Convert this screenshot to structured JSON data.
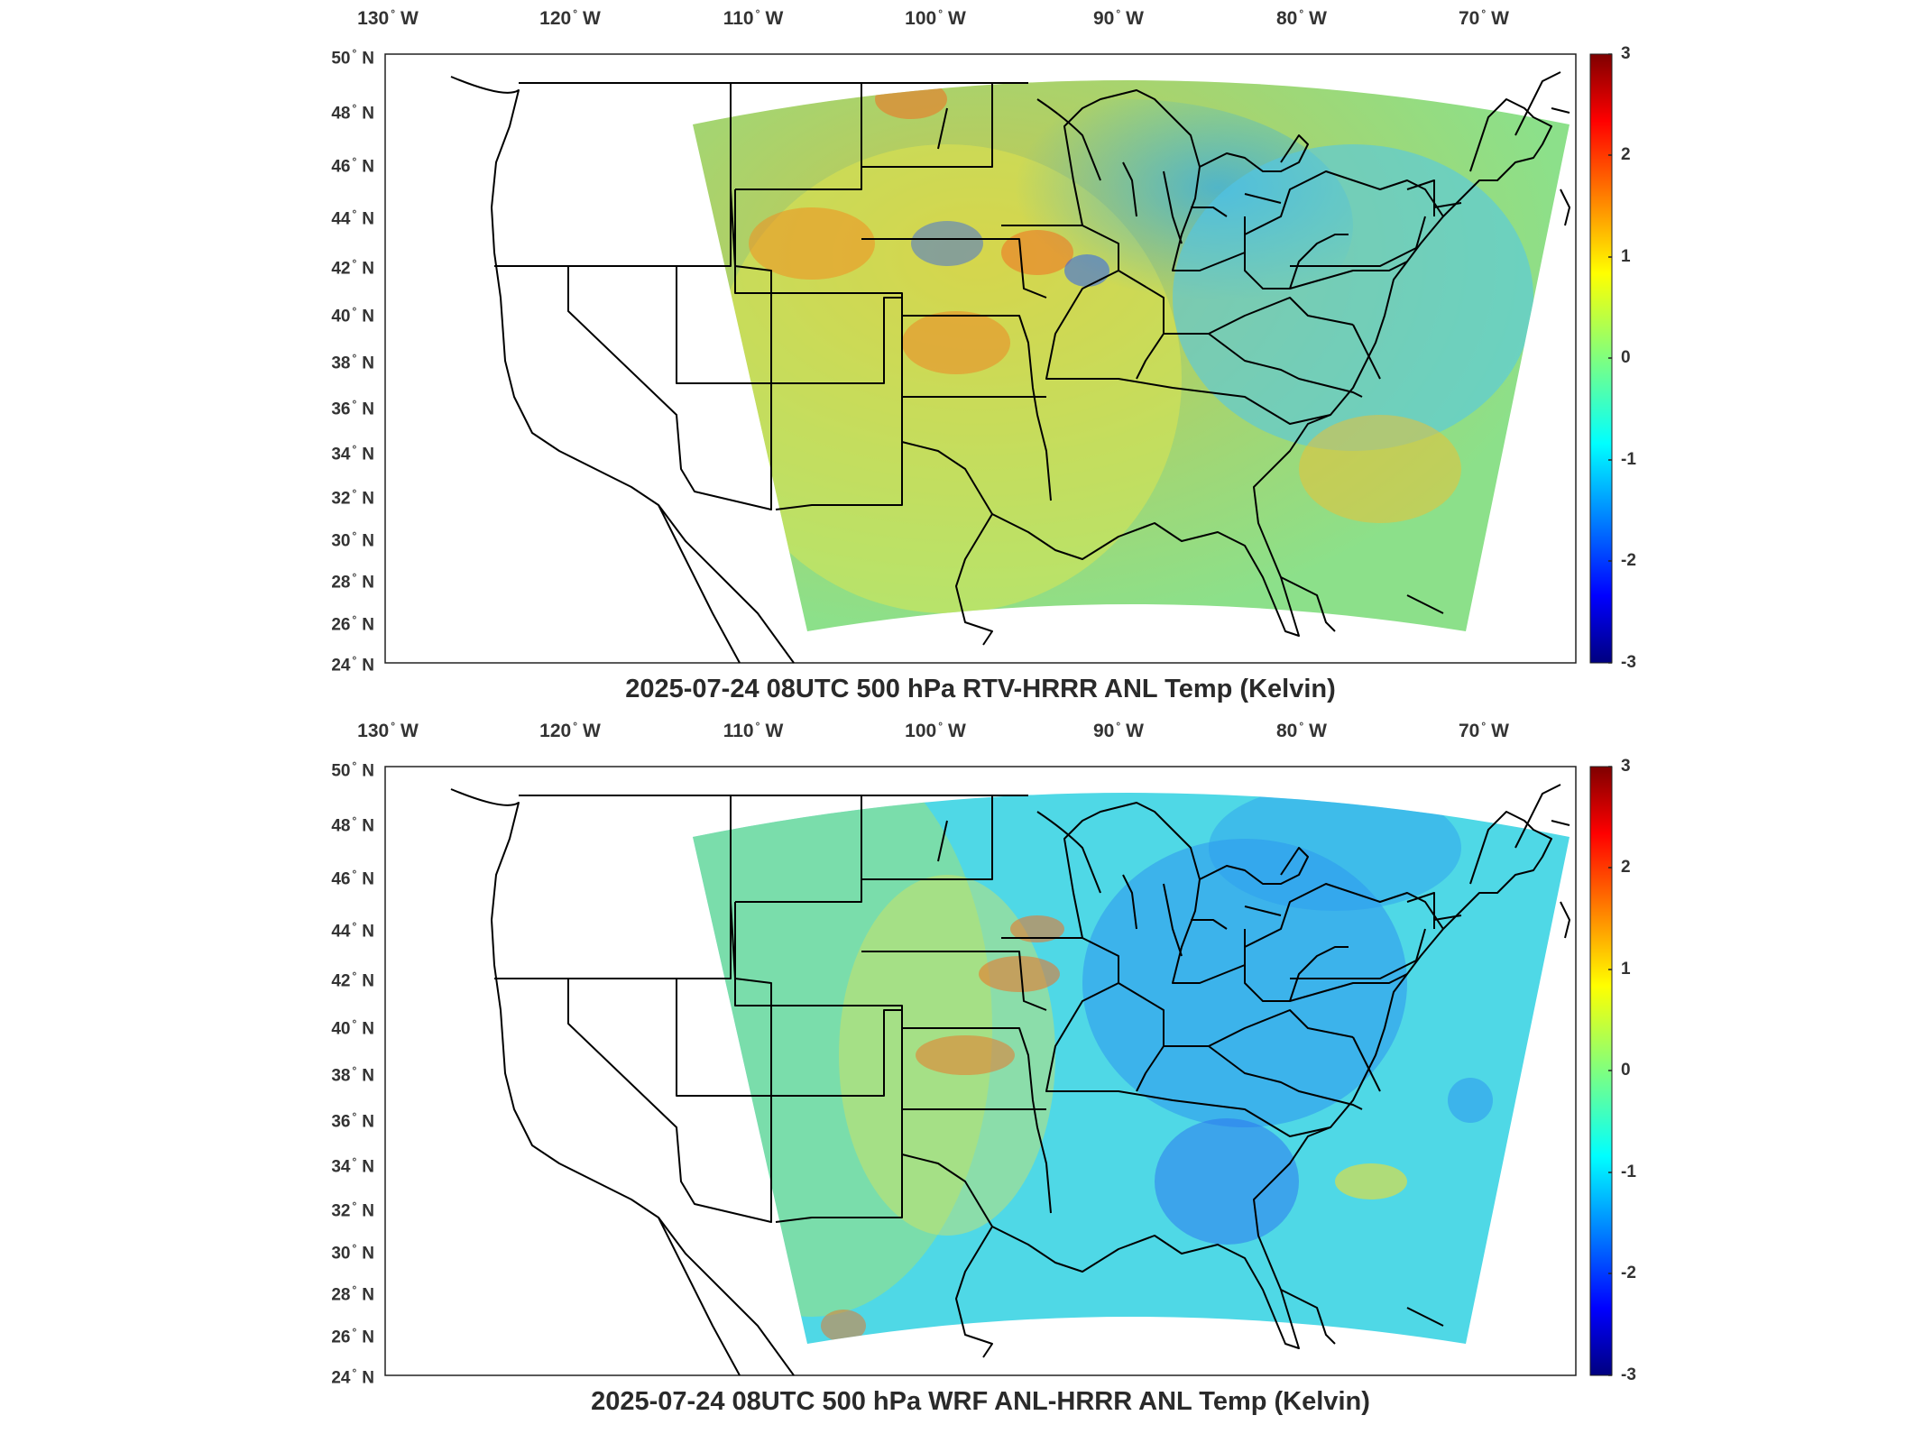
{
  "panels": [
    {
      "title": "2025-07-24 08UTC 500 hPa RTV-HRRR ANL Temp (Kelvin)",
      "colormap": "jet",
      "colorbar_range": [
        -3,
        3
      ],
      "colorbar_ticks": [
        "3",
        "2",
        "1",
        "0",
        "-1",
        "-2",
        "-3"
      ]
    },
    {
      "title": "2025-07-24 08UTC 500 hPa WRF ANL-HRRR ANL Temp (Kelvin)",
      "colormap": "jet",
      "colorbar_range": [
        -3,
        3
      ],
      "colorbar_ticks": [
        "3",
        "2",
        "1",
        "0",
        "-1",
        "-2",
        "-3"
      ]
    }
  ],
  "lon_ticks": [
    {
      "value": "130",
      "hem": "W"
    },
    {
      "value": "120",
      "hem": "W"
    },
    {
      "value": "110",
      "hem": "W"
    },
    {
      "value": "100",
      "hem": "W"
    },
    {
      "value": "90",
      "hem": "W"
    },
    {
      "value": "80",
      "hem": "W"
    },
    {
      "value": "70",
      "hem": "W"
    }
  ],
  "lat_ticks": [
    {
      "value": "50",
      "hem": "N"
    },
    {
      "value": "48",
      "hem": "N"
    },
    {
      "value": "46",
      "hem": "N"
    },
    {
      "value": "44",
      "hem": "N"
    },
    {
      "value": "42",
      "hem": "N"
    },
    {
      "value": "40",
      "hem": "N"
    },
    {
      "value": "38",
      "hem": "N"
    },
    {
      "value": "36",
      "hem": "N"
    },
    {
      "value": "34",
      "hem": "N"
    },
    {
      "value": "32",
      "hem": "N"
    },
    {
      "value": "30",
      "hem": "N"
    },
    {
      "value": "28",
      "hem": "N"
    },
    {
      "value": "26",
      "hem": "N"
    },
    {
      "value": "24",
      "hem": "N"
    }
  ],
  "colors": {
    "jet_dark_red": "#7f0000",
    "jet_red": "#ff0000",
    "jet_yellow": "#ffff00",
    "jet_cyan": "#00ffff",
    "jet_blue": "#0000ff",
    "jet_dark_blue": "#00007f",
    "coastline": "#000000"
  }
}
